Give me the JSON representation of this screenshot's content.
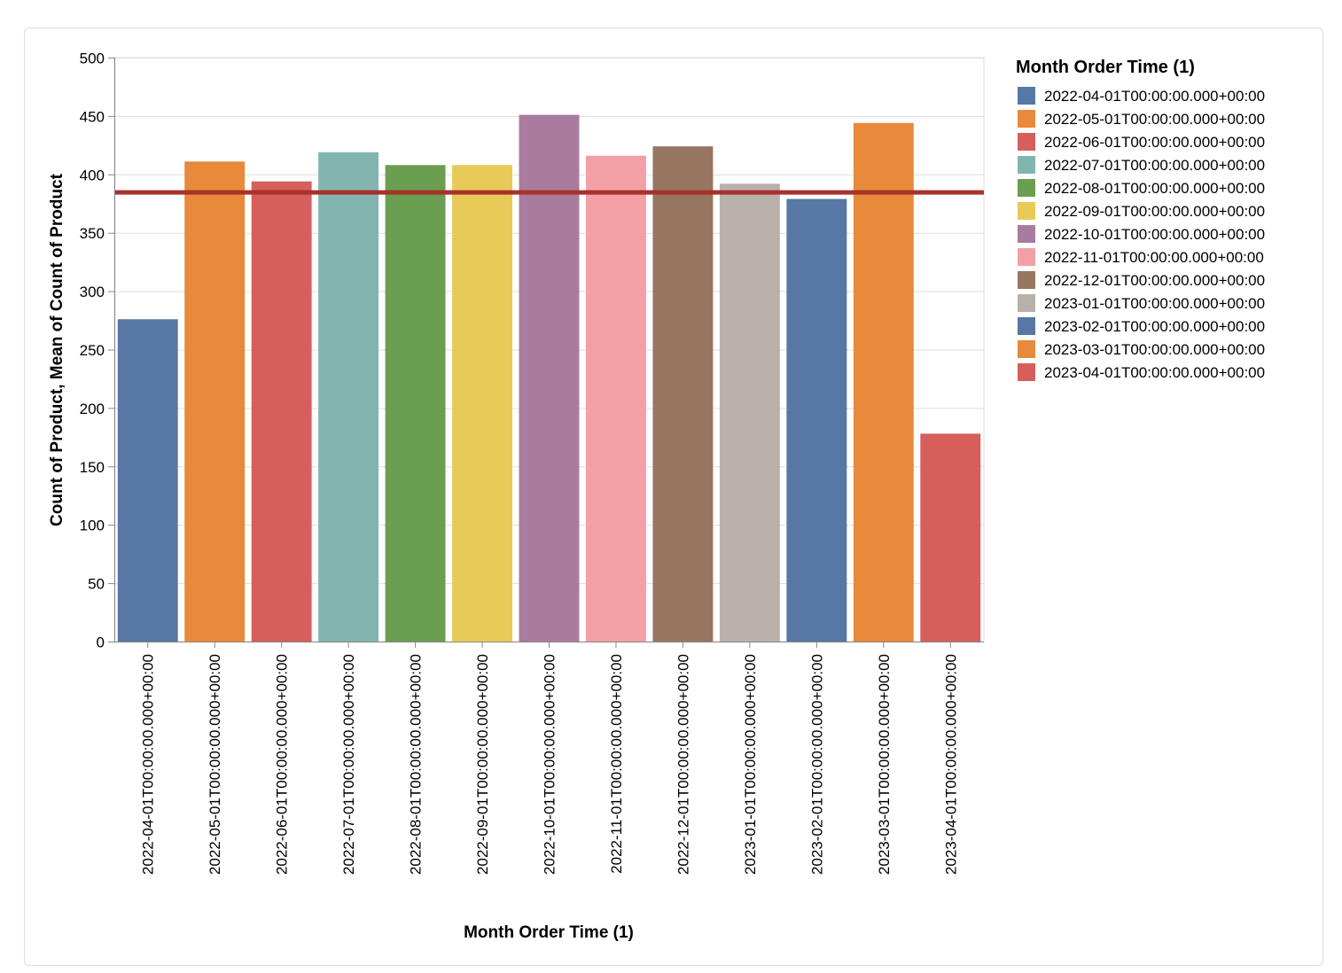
{
  "chart_data": {
    "type": "bar",
    "title": "",
    "xlabel": "Month Order Time (1)",
    "ylabel": "Count of Product, Mean of Count of Product",
    "ylim": [
      0,
      500
    ],
    "yticks": [
      0,
      50,
      100,
      150,
      200,
      250,
      300,
      350,
      400,
      450,
      500
    ],
    "grid": true,
    "legend_title": "Month Order Time (1)",
    "legend_position": "right",
    "categories": [
      "2022-04-01T00:00:00.000+00:00",
      "2022-05-01T00:00:00.000+00:00",
      "2022-06-01T00:00:00.000+00:00",
      "2022-07-01T00:00:00.000+00:00",
      "2022-08-01T00:00:00.000+00:00",
      "2022-09-01T00:00:00.000+00:00",
      "2022-10-01T00:00:00.000+00:00",
      "2022-11-01T00:00:00.000+00:00",
      "2022-12-01T00:00:00.000+00:00",
      "2023-01-01T00:00:00.000+00:00",
      "2023-02-01T00:00:00.000+00:00",
      "2023-03-01T00:00:00.000+00:00",
      "2023-04-01T00:00:00.000+00:00"
    ],
    "values": [
      276,
      411,
      394,
      419,
      408,
      408,
      451,
      416,
      424,
      392,
      379,
      444,
      178
    ],
    "colors": [
      "#5778a4",
      "#e8893b",
      "#d65f5b",
      "#83b5b0",
      "#6a9f51",
      "#e8ca58",
      "#a97c9f",
      "#f2a0a6",
      "#967660",
      "#b9b0ac",
      "#5778a4",
      "#e8893b",
      "#d65f5b"
    ],
    "mean_rule": {
      "name": "Mean of Count of Product",
      "value": 384.6,
      "color": "#a8312b"
    }
  }
}
